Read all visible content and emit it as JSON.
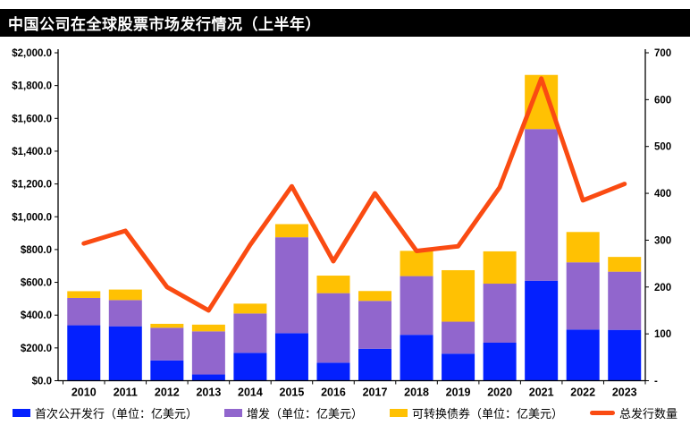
{
  "title": "中国公司在全球股票市场发行情况（上半年）",
  "colors": {
    "title_bar_bg": "#000000",
    "title_text": "#FFFFFF",
    "axis_text": "#000000",
    "ipo_blue": "#0420FE",
    "seo_purple": "#9166CD",
    "cb_yellow": "#FFC103",
    "line_orange": "#FA4B12"
  },
  "chart_data": {
    "type": "bar",
    "stacked": true,
    "grid": false,
    "legend_position": "bottom",
    "categories": [
      "2010",
      "2011",
      "2012",
      "2013",
      "2014",
      "2015",
      "2016",
      "2017",
      "2018",
      "2019",
      "2020",
      "2021",
      "2022",
      "2023"
    ],
    "series": [
      {
        "name": "首次公开发行（单位：亿美元）",
        "kind": "bar",
        "axis": "left",
        "color": "#0420FE",
        "values": [
          338,
          332,
          124,
          38,
          170,
          290,
          110,
          195,
          280,
          165,
          232,
          610,
          312,
          310
        ]
      },
      {
        "name": "增发（单位：亿美元）",
        "kind": "bar",
        "axis": "left",
        "color": "#9166CD",
        "values": [
          167,
          160,
          199,
          263,
          240,
          585,
          424,
          292,
          358,
          195,
          360,
          925,
          410,
          355
        ]
      },
      {
        "name": "可转换债券（单位：亿美元）",
        "kind": "bar",
        "axis": "left",
        "color": "#FFC103",
        "values": [
          41,
          64,
          24,
          41,
          60,
          80,
          107,
          60,
          154,
          314,
          197,
          330,
          185,
          90
        ]
      },
      {
        "name": "总发行数量",
        "kind": "line",
        "axis": "right",
        "color": "#FA4B12",
        "values": [
          293,
          320,
          200,
          150,
          290,
          415,
          255,
          400,
          277,
          287,
          413,
          645,
          385,
          420
        ]
      }
    ],
    "stack_totals": [
      546,
      556,
      347,
      342,
      470,
      955,
      641,
      547,
      792,
      674,
      789,
      1865,
      907,
      755
    ],
    "y_axis_left": {
      "min": 0,
      "max": 2000,
      "step": 200,
      "tick_labels_top_down": [
        "$2,000.0",
        "$1,800.0",
        "$1,600.0",
        "$1,400.0",
        "$1,200.0",
        "$1,000.0",
        "$800.0",
        "$600.0",
        "$400.0",
        "$200.0",
        "$0.0"
      ]
    },
    "y_axis_right": {
      "min": 0,
      "max": 700,
      "step": 100,
      "tick_labels_top_down": [
        "700",
        "600",
        "500",
        "400",
        "300",
        "200",
        "100",
        "-"
      ]
    }
  }
}
